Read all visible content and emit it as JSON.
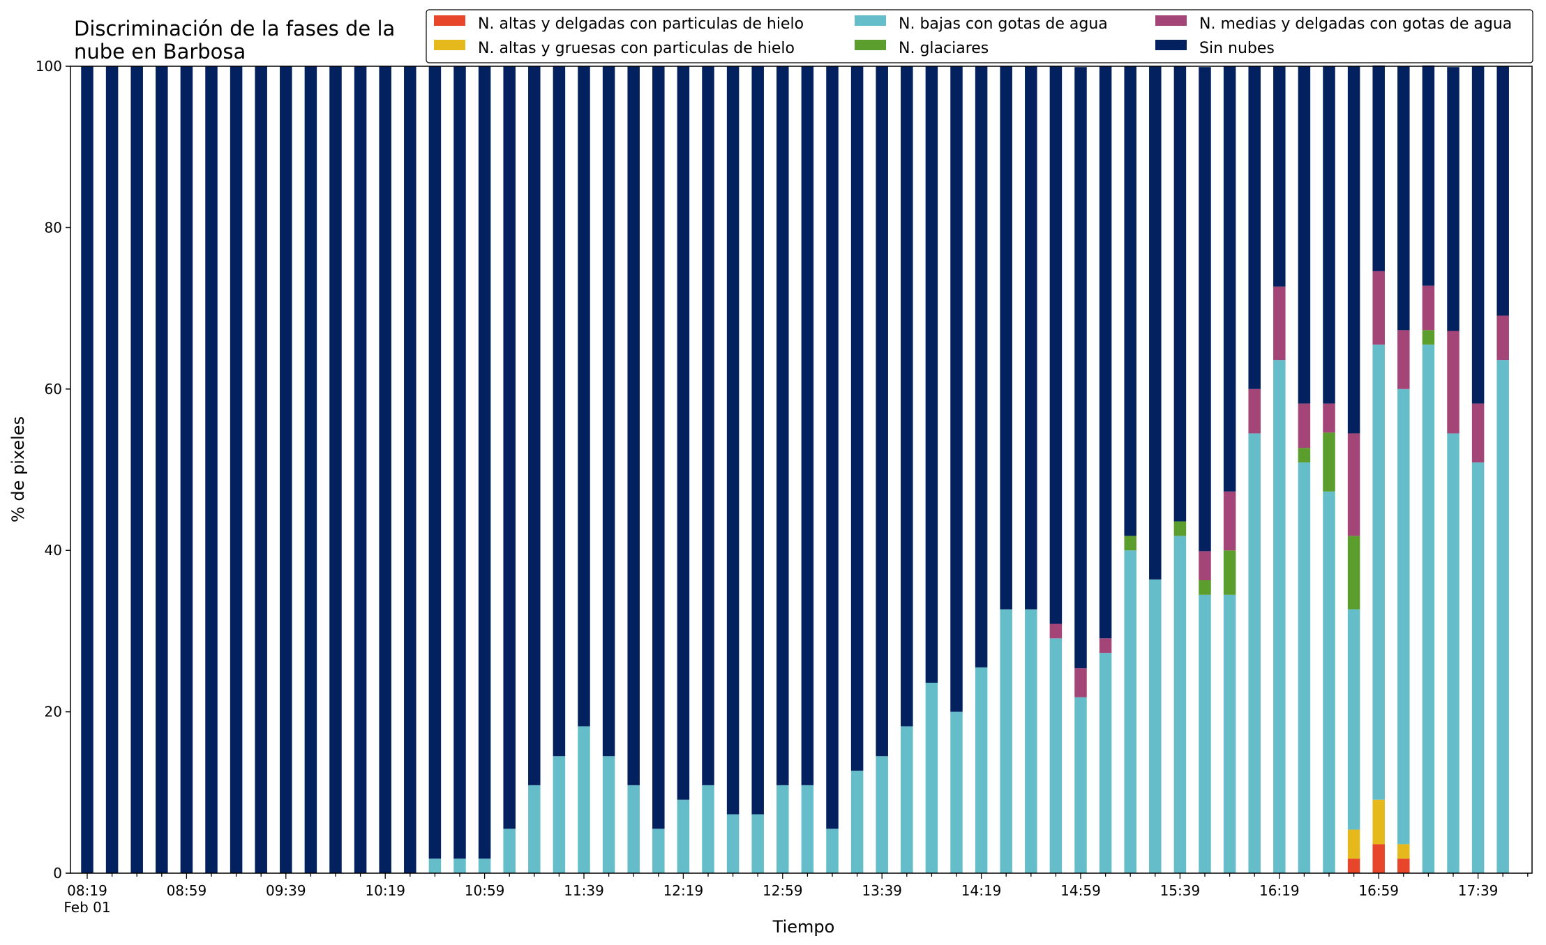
{
  "chart_data": {
    "type": "bar",
    "stacked": true,
    "title_lines": [
      "Discriminación de la fases de la",
      "nube en Barbosa"
    ],
    "xlabel": "Tiempo",
    "ylabel": "% de pixeles",
    "ylim": [
      0,
      100
    ],
    "yticks": [
      "0",
      "20",
      "40",
      "60",
      "80",
      "100"
    ],
    "x_date_label": "Feb 01",
    "x_tick_labels": [
      "08:19",
      "08:59",
      "09:39",
      "10:19",
      "10:59",
      "11:39",
      "12:19",
      "12:59",
      "13:39",
      "14:19",
      "14:59",
      "15:39",
      "16:19",
      "16:59",
      "17:39"
    ],
    "grid": false,
    "legend_position": "top-right",
    "categories": [
      "08:19",
      "08:29",
      "08:39",
      "08:49",
      "08:59",
      "09:09",
      "09:19",
      "09:29",
      "09:39",
      "09:49",
      "09:59",
      "10:09",
      "10:19",
      "10:29",
      "10:39",
      "10:49",
      "10:59",
      "11:09",
      "11:19",
      "11:29",
      "11:39",
      "11:49",
      "11:59",
      "12:09",
      "12:19",
      "12:29",
      "12:39",
      "12:49",
      "12:59",
      "13:09",
      "13:19",
      "13:29",
      "13:39",
      "13:49",
      "13:59",
      "14:09",
      "14:19",
      "14:29",
      "14:39",
      "14:49",
      "14:59",
      "15:09",
      "15:19",
      "15:29",
      "15:39",
      "15:49",
      "15:59",
      "16:09",
      "16:19",
      "16:29",
      "16:39",
      "16:49",
      "16:59",
      "17:09",
      "17:19",
      "17:29",
      "17:39",
      "17:49"
    ],
    "series": [
      {
        "name": "N. altas y delgadas con particulas de hielo",
        "color": "#e8462a",
        "values": [
          0,
          0,
          0,
          0,
          0,
          0,
          0,
          0,
          0,
          0,
          0,
          0,
          0,
          0,
          0,
          0,
          0,
          0,
          0,
          0,
          0,
          0,
          0,
          0,
          0,
          0,
          0,
          0,
          0,
          0,
          0,
          0,
          0,
          0,
          0,
          0,
          0,
          0,
          0,
          0,
          0,
          0,
          0,
          0,
          0,
          0,
          0,
          0,
          0,
          0,
          0,
          1.8,
          3.6,
          1.8,
          0,
          0,
          0,
          0
        ]
      },
      {
        "name": "N. altas y gruesas con particulas de hielo",
        "color": "#e5b81c",
        "values": [
          0,
          0,
          0,
          0,
          0,
          0,
          0,
          0,
          0,
          0,
          0,
          0,
          0,
          0,
          0,
          0,
          0,
          0,
          0,
          0,
          0,
          0,
          0,
          0,
          0,
          0,
          0,
          0,
          0,
          0,
          0,
          0,
          0,
          0,
          0,
          0,
          0,
          0,
          0,
          0,
          0,
          0,
          0,
          0,
          0,
          0,
          0,
          0,
          0,
          0,
          0,
          3.6,
          5.5,
          1.8,
          0,
          0,
          0,
          0
        ]
      },
      {
        "name": "N. bajas con gotas de agua",
        "color": "#66bdca",
        "values": [
          0,
          0,
          0,
          0,
          0,
          0,
          0,
          0,
          0,
          0,
          0,
          0,
          0,
          0,
          1.8,
          1.8,
          1.8,
          5.5,
          10.9,
          14.5,
          18.2,
          14.5,
          10.9,
          5.5,
          9.1,
          10.9,
          7.3,
          7.3,
          10.9,
          10.9,
          5.5,
          12.7,
          14.5,
          18.2,
          23.6,
          20.0,
          25.5,
          32.7,
          32.7,
          29.1,
          21.8,
          27.3,
          40.0,
          36.4,
          41.8,
          34.5,
          34.5,
          54.5,
          63.6,
          50.9,
          47.3,
          27.3,
          56.4,
          56.4,
          65.5,
          54.5,
          50.9,
          63.6
        ]
      },
      {
        "name": "N. glaciares",
        "color": "#5b9e2d",
        "values": [
          0,
          0,
          0,
          0,
          0,
          0,
          0,
          0,
          0,
          0,
          0,
          0,
          0,
          0,
          0,
          0,
          0,
          0,
          0,
          0,
          0,
          0,
          0,
          0,
          0,
          0,
          0,
          0,
          0,
          0,
          0,
          0,
          0,
          0,
          0,
          0,
          0,
          0,
          0,
          0,
          0,
          0,
          1.8,
          0,
          1.8,
          1.8,
          5.5,
          0,
          0,
          1.8,
          7.3,
          9.1,
          0,
          0,
          1.8,
          0,
          0,
          0
        ]
      },
      {
        "name": "N. medias y delgadas con gotas de agua",
        "color": "#a34577",
        "values": [
          0,
          0,
          0,
          0,
          0,
          0,
          0,
          0,
          0,
          0,
          0,
          0,
          0,
          0,
          0,
          0,
          0,
          0,
          0,
          0,
          0,
          0,
          0,
          0,
          0,
          0,
          0,
          0,
          0,
          0,
          0,
          0,
          0,
          0,
          0,
          0,
          0,
          0,
          0,
          1.8,
          3.6,
          1.8,
          0,
          0,
          0,
          3.6,
          7.3,
          5.5,
          9.1,
          5.5,
          3.6,
          12.7,
          9.1,
          7.3,
          5.5,
          12.7,
          7.3,
          5.5
        ]
      },
      {
        "name": "Sin nubes",
        "color": "#03215f",
        "values": [
          100,
          100,
          100,
          100,
          100,
          100,
          100,
          100,
          100,
          100,
          100,
          100,
          100,
          100,
          98.2,
          98.2,
          98.2,
          94.5,
          89.1,
          85.5,
          81.8,
          85.5,
          89.1,
          94.5,
          90.9,
          89.1,
          92.7,
          92.7,
          89.1,
          89.1,
          94.5,
          87.3,
          85.5,
          81.8,
          76.4,
          80.0,
          74.5,
          67.3,
          67.3,
          69.1,
          74.5,
          70.9,
          58.2,
          63.6,
          56.4,
          60.0,
          52.7,
          40.0,
          27.3,
          41.8,
          41.8,
          45.5,
          25.5,
          32.7,
          27.3,
          32.7,
          41.8,
          30.9
        ]
      }
    ]
  }
}
